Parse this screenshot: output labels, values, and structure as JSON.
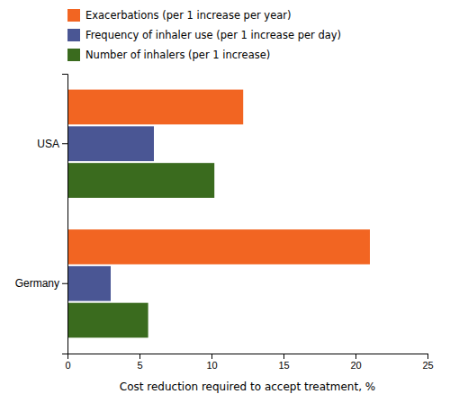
{
  "chart_data": {
    "type": "bar",
    "orientation": "horizontal",
    "categories": [
      "USA",
      "Germany"
    ],
    "series": [
      {
        "name": "Exacerbations (per 1 increase per year)",
        "color": "#f26522",
        "values": [
          12.2,
          21.0
        ]
      },
      {
        "name": "Frequency of inhaler use (per 1 increase per day)",
        "color": "#4a5694",
        "values": [
          6.0,
          3.0
        ]
      },
      {
        "name": "Number of inhalers (per 1 increase)",
        "color": "#3a6b1e",
        "values": [
          10.2,
          5.6
        ]
      }
    ],
    "xlim": [
      0,
      25
    ],
    "xticks": [
      0,
      5,
      10,
      15,
      20,
      25
    ],
    "xlabel": "Cost reduction required to accept treatment, %",
    "legend": "top-left",
    "grid": false
  }
}
